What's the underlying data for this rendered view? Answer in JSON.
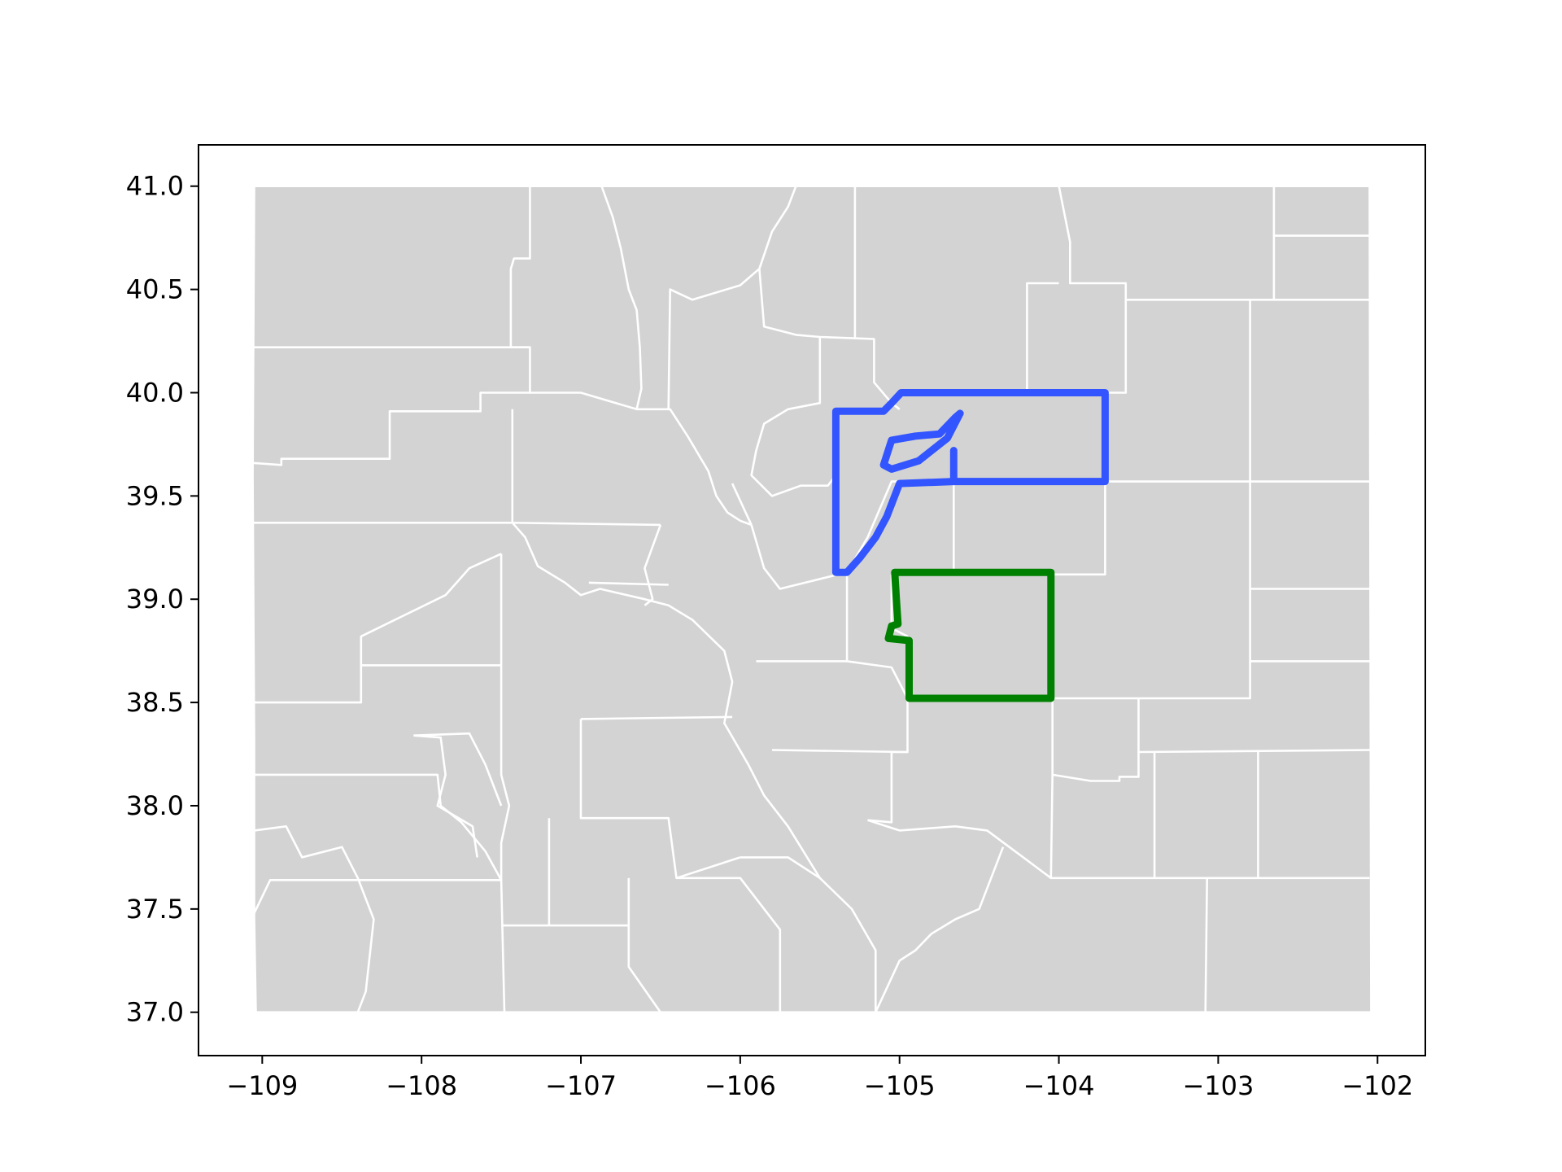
{
  "chart_data": {
    "type": "map",
    "title": "",
    "xlabel": "",
    "ylabel": "",
    "xlim": [
      -109.4,
      -101.7
    ],
    "ylim": [
      36.79,
      41.2
    ],
    "x_ticks": [
      {
        "value": -109,
        "label": "−109"
      },
      {
        "value": -108,
        "label": "−108"
      },
      {
        "value": -107,
        "label": "−107"
      },
      {
        "value": -106,
        "label": "−106"
      },
      {
        "value": -105,
        "label": "−105"
      },
      {
        "value": -104,
        "label": "−104"
      },
      {
        "value": -103,
        "label": "−103"
      },
      {
        "value": -102,
        "label": "−102"
      }
    ],
    "y_ticks": [
      {
        "value": 37.0,
        "label": "37.0"
      },
      {
        "value": 37.5,
        "label": "37.5"
      },
      {
        "value": 38.0,
        "label": "38.0"
      },
      {
        "value": 38.5,
        "label": "38.5"
      },
      {
        "value": 39.0,
        "label": "39.0"
      },
      {
        "value": 39.5,
        "label": "39.5"
      },
      {
        "value": 40.0,
        "label": "40.0"
      },
      {
        "value": 40.5,
        "label": "40.5"
      },
      {
        "value": 41.0,
        "label": "41.0"
      }
    ],
    "grid": false,
    "colors": {
      "county_fill": "#d3d3d3",
      "county_edge": "#ffffff",
      "highlight_blue": "#3355ff",
      "highlight_green": "#008000"
    },
    "state_outline": [
      [
        -109.05,
        41.0
      ],
      [
        -102.05,
        41.0
      ],
      [
        -102.04,
        37.0
      ],
      [
        -109.04,
        37.0
      ],
      [
        -109.05,
        37.45
      ],
      [
        -109.05,
        38.3
      ],
      [
        -109.06,
        39.6
      ]
    ],
    "county_boundaries": [
      [
        [
          -109.05,
          40.22
        ],
        [
          -107.32,
          40.22
        ],
        [
          -107.32,
          40.0
        ],
        [
          -107.63,
          40.0
        ],
        [
          -107.63,
          39.91
        ],
        [
          -108.2,
          39.91
        ],
        [
          -108.2,
          39.68
        ],
        [
          -108.88,
          39.68
        ],
        [
          -108.88,
          39.65
        ],
        [
          -109.06,
          39.66
        ]
      ],
      [
        [
          -107.32,
          40.22
        ],
        [
          -107.44,
          40.22
        ],
        [
          -107.44,
          40.6
        ],
        [
          -107.42,
          40.65
        ],
        [
          -107.32,
          40.65
        ],
        [
          -107.32,
          41.0
        ]
      ],
      [
        [
          -107.32,
          40.0
        ],
        [
          -107.0,
          40.0
        ],
        [
          -106.65,
          39.92
        ],
        [
          -106.44,
          39.92
        ],
        [
          -106.33,
          39.79
        ],
        [
          -106.2,
          39.62
        ],
        [
          -106.15,
          39.5
        ],
        [
          -106.08,
          39.42
        ],
        [
          -106.0,
          39.38
        ],
        [
          -105.93,
          39.36
        ]
      ],
      [
        [
          -107.43,
          39.92
        ],
        [
          -107.43,
          39.37
        ],
        [
          -106.5,
          39.36
        ]
      ],
      [
        [
          -109.06,
          39.37
        ],
        [
          -107.43,
          39.37
        ],
        [
          -107.35,
          39.3
        ],
        [
          -107.27,
          39.16
        ],
        [
          -107.1,
          39.08
        ],
        [
          -107.0,
          39.02
        ],
        [
          -106.88,
          39.05
        ],
        [
          -106.6,
          39.0
        ],
        [
          -106.45,
          38.97
        ],
        [
          -106.3,
          38.9
        ],
        [
          -106.1,
          38.75
        ],
        [
          -106.05,
          38.6
        ],
        [
          -106.1,
          38.4
        ],
        [
          -105.95,
          38.2
        ],
        [
          -105.85,
          38.05
        ],
        [
          -105.7,
          37.9
        ],
        [
          -105.5,
          37.65
        ],
        [
          -105.3,
          37.5
        ],
        [
          -105.15,
          37.3
        ],
        [
          -105.15,
          37.0
        ]
      ],
      [
        [
          -106.45,
          39.92
        ],
        [
          -106.44,
          40.5
        ],
        [
          -106.3,
          40.45
        ],
        [
          -106.0,
          40.52
        ],
        [
          -105.88,
          40.6
        ],
        [
          -105.8,
          40.78
        ],
        [
          -105.7,
          40.9
        ],
        [
          -105.65,
          41.0
        ]
      ],
      [
        [
          -106.87,
          41.0
        ],
        [
          -106.8,
          40.85
        ],
        [
          -106.75,
          40.7
        ],
        [
          -106.7,
          40.5
        ],
        [
          -106.65,
          40.4
        ],
        [
          -106.63,
          40.22
        ],
        [
          -106.62,
          40.02
        ],
        [
          -106.65,
          39.92
        ]
      ],
      [
        [
          -105.88,
          40.6
        ],
        [
          -105.85,
          40.32
        ],
        [
          -105.65,
          40.28
        ],
        [
          -105.5,
          40.27
        ],
        [
          -105.16,
          40.26
        ],
        [
          -105.16,
          40.05
        ],
        [
          -105.05,
          39.95
        ],
        [
          -105.0,
          39.92
        ]
      ],
      [
        [
          -105.5,
          40.27
        ],
        [
          -105.5,
          39.95
        ],
        [
          -105.7,
          39.92
        ],
        [
          -105.85,
          39.85
        ],
        [
          -105.9,
          39.72
        ],
        [
          -105.93,
          39.6
        ],
        [
          -105.8,
          39.5
        ],
        [
          -105.62,
          39.55
        ],
        [
          -105.45,
          39.55
        ],
        [
          -105.4,
          39.6
        ]
      ],
      [
        [
          -105.28,
          41.0
        ],
        [
          -105.28,
          40.26
        ]
      ],
      [
        [
          -104.0,
          41.0
        ],
        [
          -103.93,
          40.73
        ],
        [
          -103.93,
          40.53
        ],
        [
          -103.58,
          40.53
        ],
        [
          -103.58,
          40.0
        ],
        [
          -104.2,
          40.0
        ],
        [
          -104.2,
          40.53
        ],
        [
          -104.0,
          40.53
        ]
      ],
      [
        [
          -103.58,
          40.45
        ],
        [
          -102.65,
          40.45
        ],
        [
          -102.65,
          41.0
        ]
      ],
      [
        [
          -102.65,
          40.76
        ],
        [
          -102.05,
          40.76
        ]
      ],
      [
        [
          -102.65,
          40.45
        ],
        [
          -102.05,
          40.45
        ]
      ],
      [
        [
          -102.8,
          40.45
        ],
        [
          -102.8,
          39.57
        ],
        [
          -102.05,
          39.57
        ]
      ],
      [
        [
          -103.71,
          39.57
        ],
        [
          -102.8,
          39.57
        ],
        [
          -102.8,
          39.05
        ],
        [
          -102.05,
          39.05
        ]
      ],
      [
        [
          -103.71,
          39.57
        ],
        [
          -103.71,
          39.12
        ],
        [
          -104.05,
          39.12
        ],
        [
          -104.04,
          38.52
        ],
        [
          -103.5,
          38.52
        ],
        [
          -102.8,
          38.52
        ],
        [
          -102.8,
          39.05
        ]
      ],
      [
        [
          -102.8,
          38.7
        ],
        [
          -102.05,
          38.7
        ]
      ],
      [
        [
          -103.5,
          38.52
        ],
        [
          -103.5,
          38.26
        ],
        [
          -102.05,
          38.27
        ]
      ],
      [
        [
          -103.5,
          38.26
        ],
        [
          -103.5,
          38.14
        ],
        [
          -103.62,
          38.14
        ],
        [
          -103.62,
          38.12
        ],
        [
          -103.8,
          38.12
        ],
        [
          -104.04,
          38.15
        ],
        [
          -104.04,
          38.52
        ]
      ],
      [
        [
          -104.04,
          38.15
        ],
        [
          -104.05,
          37.65
        ],
        [
          -103.07,
          37.65
        ],
        [
          -102.05,
          37.65
        ]
      ],
      [
        [
          -103.4,
          38.26
        ],
        [
          -103.4,
          37.65
        ]
      ],
      [
        [
          -102.75,
          38.27
        ],
        [
          -102.75,
          37.65
        ]
      ],
      [
        [
          -103.07,
          37.65
        ],
        [
          -103.08,
          37.0
        ]
      ],
      [
        [
          -104.05,
          37.65
        ],
        [
          -104.45,
          37.88
        ],
        [
          -104.65,
          37.9
        ],
        [
          -105.0,
          37.88
        ],
        [
          -105.2,
          37.93
        ]
      ],
      [
        [
          -104.35,
          37.8
        ],
        [
          -104.5,
          37.5
        ],
        [
          -104.65,
          37.45
        ],
        [
          -104.8,
          37.38
        ],
        [
          -104.9,
          37.3
        ],
        [
          -105.0,
          37.25
        ],
        [
          -105.15,
          37.0
        ]
      ],
      [
        [
          -104.05,
          38.52
        ],
        [
          -104.95,
          38.52
        ],
        [
          -104.95,
          38.26
        ],
        [
          -105.05,
          38.26
        ],
        [
          -105.05,
          37.92
        ],
        [
          -105.2,
          37.93
        ]
      ],
      [
        [
          -104.95,
          38.26
        ],
        [
          -105.8,
          38.27
        ]
      ],
      [
        [
          -105.93,
          39.36
        ],
        [
          -105.85,
          39.15
        ],
        [
          -105.75,
          39.05
        ],
        [
          -105.33,
          39.13
        ],
        [
          -105.33,
          38.7
        ],
        [
          -105.05,
          38.67
        ],
        [
          -104.95,
          38.52
        ]
      ],
      [
        [
          -105.33,
          38.7
        ],
        [
          -105.9,
          38.7
        ]
      ],
      [
        [
          -105.05,
          39.12
        ],
        [
          -105.05,
          38.86
        ],
        [
          -104.95,
          38.82
        ],
        [
          -104.95,
          38.52
        ]
      ],
      [
        [
          -104.66,
          39.57
        ],
        [
          -104.66,
          39.13
        ],
        [
          -104.05,
          39.13
        ]
      ],
      [
        [
          -104.66,
          39.57
        ],
        [
          -105.05,
          39.57
        ],
        [
          -105.2,
          39.3
        ],
        [
          -105.33,
          39.13
        ]
      ],
      [
        [
          -106.5,
          39.36
        ],
        [
          -106.6,
          39.15
        ],
        [
          -106.55,
          39.0
        ],
        [
          -106.6,
          38.97
        ]
      ],
      [
        [
          -106.95,
          39.08
        ],
        [
          -106.45,
          39.07
        ]
      ],
      [
        [
          -107.5,
          39.22
        ],
        [
          -107.5,
          38.5
        ],
        [
          -107.5,
          38.15
        ],
        [
          -107.45,
          38.0
        ],
        [
          -107.5,
          37.82
        ],
        [
          -107.5,
          37.64
        ]
      ],
      [
        [
          -109.06,
          38.5
        ],
        [
          -108.38,
          38.5
        ],
        [
          -108.38,
          38.82
        ],
        [
          -107.85,
          39.02
        ],
        [
          -107.7,
          39.15
        ],
        [
          -107.5,
          39.22
        ]
      ],
      [
        [
          -108.38,
          38.68
        ],
        [
          -107.5,
          38.68
        ]
      ],
      [
        [
          -109.05,
          38.15
        ],
        [
          -107.9,
          38.15
        ],
        [
          -107.88,
          38.0
        ],
        [
          -107.75,
          37.92
        ],
        [
          -107.6,
          37.78
        ],
        [
          -107.5,
          37.64
        ]
      ],
      [
        [
          -108.05,
          38.34
        ],
        [
          -107.88,
          38.33
        ],
        [
          -107.85,
          38.15
        ],
        [
          -107.9,
          38.0
        ],
        [
          -107.68,
          37.9
        ],
        [
          -107.65,
          37.75
        ]
      ],
      [
        [
          -108.05,
          38.34
        ],
        [
          -107.7,
          38.35
        ],
        [
          -107.6,
          38.2
        ],
        [
          -107.5,
          38.0
        ]
      ],
      [
        [
          -109.05,
          37.88
        ],
        [
          -108.85,
          37.9
        ],
        [
          -108.75,
          37.75
        ],
        [
          -108.5,
          37.8
        ],
        [
          -108.4,
          37.65
        ],
        [
          -108.3,
          37.45
        ],
        [
          -108.35,
          37.1
        ],
        [
          -108.4,
          37.0
        ]
      ],
      [
        [
          -109.05,
          37.48
        ],
        [
          -108.95,
          37.64
        ],
        [
          -107.5,
          37.64
        ],
        [
          -107.48,
          37.0
        ]
      ],
      [
        [
          -107.5,
          37.42
        ],
        [
          -106.7,
          37.42
        ],
        [
          -106.7,
          37.22
        ],
        [
          -106.5,
          37.0
        ]
      ],
      [
        [
          -107.0,
          38.42
        ],
        [
          -106.05,
          38.43
        ]
      ],
      [
        [
          -107.0,
          38.42
        ],
        [
          -107.0,
          37.94
        ],
        [
          -106.45,
          37.94
        ],
        [
          -106.4,
          37.65
        ],
        [
          -106.0,
          37.75
        ]
      ],
      [
        [
          -107.2,
          37.94
        ],
        [
          -107.2,
          37.42
        ]
      ],
      [
        [
          -106.4,
          37.65
        ],
        [
          -106.0,
          37.65
        ],
        [
          -105.75,
          37.4
        ],
        [
          -105.75,
          37.0
        ]
      ],
      [
        [
          -106.7,
          37.65
        ],
        [
          -106.7,
          37.42
        ]
      ],
      [
        [
          -106.0,
          37.75
        ],
        [
          -105.7,
          37.75
        ],
        [
          -105.5,
          37.65
        ]
      ],
      [
        [
          -106.05,
          39.56
        ],
        [
          -105.93,
          39.36
        ]
      ]
    ],
    "highlighted_regions": [
      {
        "color": "#3355ff",
        "outlines": [
          [
            [
              -105.4,
              39.13
            ],
            [
              -105.4,
              39.91
            ],
            [
              -105.1,
              39.91
            ],
            [
              -105.05,
              39.95
            ],
            [
              -104.99,
              40.0
            ],
            [
              -103.71,
              40.0
            ],
            [
              -103.71,
              39.57
            ],
            [
              -104.66,
              39.57
            ],
            [
              -105.0,
              39.56
            ],
            [
              -105.03,
              39.5
            ],
            [
              -105.08,
              39.4
            ],
            [
              -105.15,
              39.3
            ],
            [
              -105.25,
              39.2
            ],
            [
              -105.33,
              39.13
            ],
            [
              -105.4,
              39.13
            ]
          ],
          [
            [
              -105.05,
              39.77
            ],
            [
              -104.9,
              39.79
            ],
            [
              -104.75,
              39.8
            ],
            [
              -104.65,
              39.88
            ],
            [
              -104.62,
              39.9
            ],
            [
              -104.7,
              39.78
            ],
            [
              -104.88,
              39.67
            ],
            [
              -105.05,
              39.63
            ],
            [
              -105.1,
              39.65
            ],
            [
              -105.05,
              39.77
            ]
          ],
          [
            [
              -104.66,
              39.72
            ],
            [
              -104.66,
              39.57
            ]
          ]
        ]
      },
      {
        "color": "#008000",
        "outlines": [
          [
            [
              -105.03,
              39.13
            ],
            [
              -104.05,
              39.13
            ],
            [
              -104.05,
              38.52
            ],
            [
              -104.94,
              38.52
            ],
            [
              -104.94,
              38.8
            ],
            [
              -105.07,
              38.81
            ],
            [
              -105.05,
              38.87
            ],
            [
              -105.01,
              38.88
            ],
            [
              -105.02,
              39.0
            ],
            [
              -105.03,
              39.13
            ]
          ]
        ]
      }
    ]
  }
}
